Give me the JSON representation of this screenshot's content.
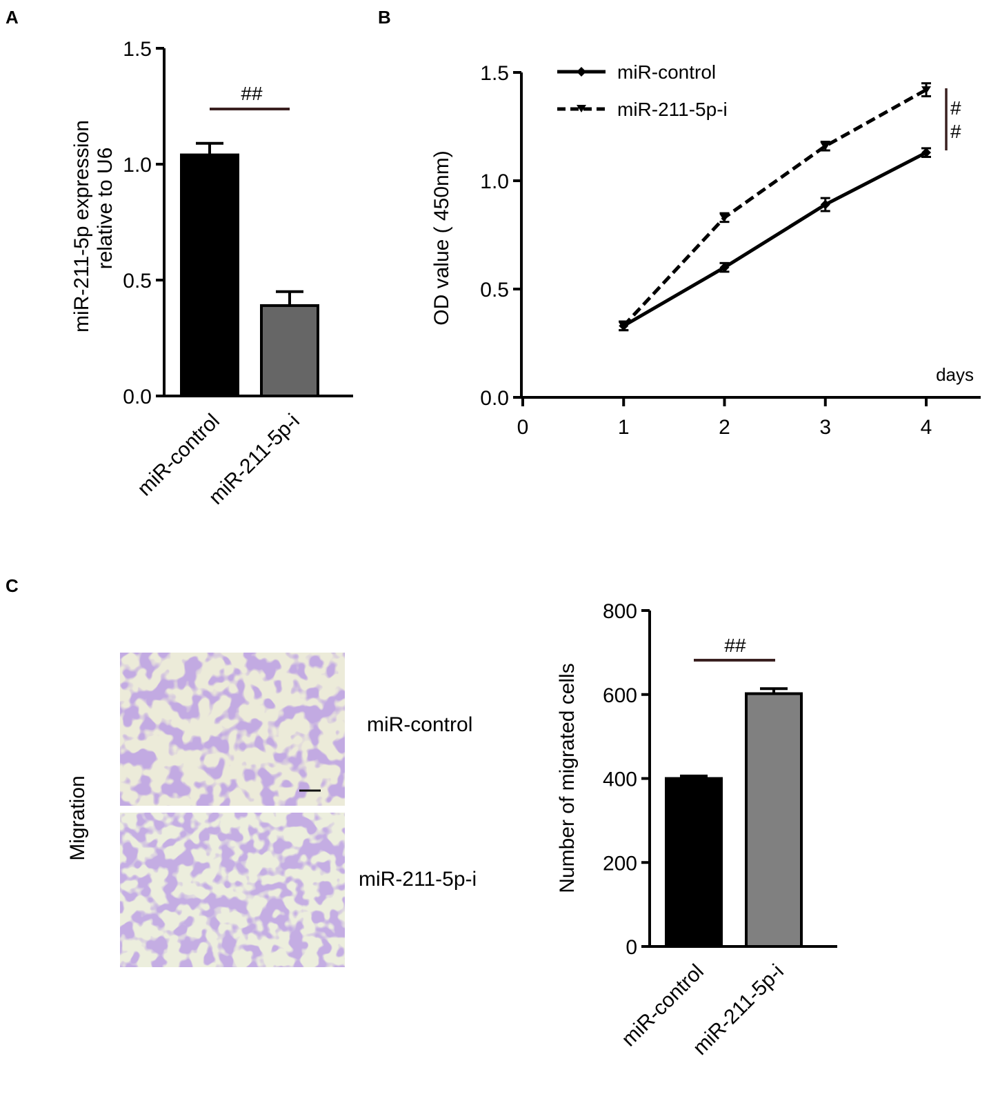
{
  "panels": {
    "A": "A",
    "B": "B",
    "C": "C"
  },
  "chart_data": [
    {
      "id": "A",
      "type": "bar",
      "categories": [
        "miR-control",
        "miR-211-5p-i"
      ],
      "values": [
        1.04,
        0.39
      ],
      "errors": [
        0.05,
        0.06
      ],
      "colors": [
        "#000000",
        "#666666"
      ],
      "ylabel_line1": "miR-211-5p expression",
      "ylabel_line2": "relative to U6",
      "ylim": [
        0,
        1.5
      ],
      "yticks": [
        "0.0",
        "0.5",
        "1.0",
        "1.5"
      ],
      "significance": "##"
    },
    {
      "id": "B",
      "type": "line",
      "x": [
        1,
        2,
        3,
        4
      ],
      "xticks": [
        "0",
        "1",
        "2",
        "3",
        "4"
      ],
      "xlim": [
        0,
        4.5
      ],
      "xlabel": "days",
      "ylabel": "OD value ( 450nm)",
      "ylim": [
        0,
        1.5
      ],
      "yticks": [
        "0.0",
        "0.5",
        "1.0",
        "1.5"
      ],
      "legend_position": "top-left",
      "series": [
        {
          "name": "miR-control",
          "values": [
            0.33,
            0.6,
            0.89,
            1.13
          ],
          "errors": [
            0.02,
            0.02,
            0.03,
            0.02
          ],
          "style": "solid",
          "marker": "diamond"
        },
        {
          "name": "miR-211-5p-i",
          "values": [
            0.33,
            0.83,
            1.16,
            1.42
          ],
          "errors": [
            0.02,
            0.02,
            0.02,
            0.03
          ],
          "style": "dashed",
          "marker": "triangle"
        }
      ],
      "significance_1": "#",
      "significance_2": "#"
    },
    {
      "id": "C",
      "type": "bar",
      "categories": [
        "miR-control",
        "miR-211-5p-i"
      ],
      "values": [
        400,
        602
      ],
      "errors": [
        6,
        12
      ],
      "colors": [
        "#000000",
        "#808080"
      ],
      "ylabel": "Number of migrated cells",
      "ylim": [
        0,
        800
      ],
      "yticks": [
        "0",
        "200",
        "400",
        "600",
        "800"
      ],
      "significance": "##"
    }
  ],
  "micrographs": {
    "row_label": "Migration",
    "labels": [
      "miR-control",
      "miR-211-5p-i"
    ]
  }
}
